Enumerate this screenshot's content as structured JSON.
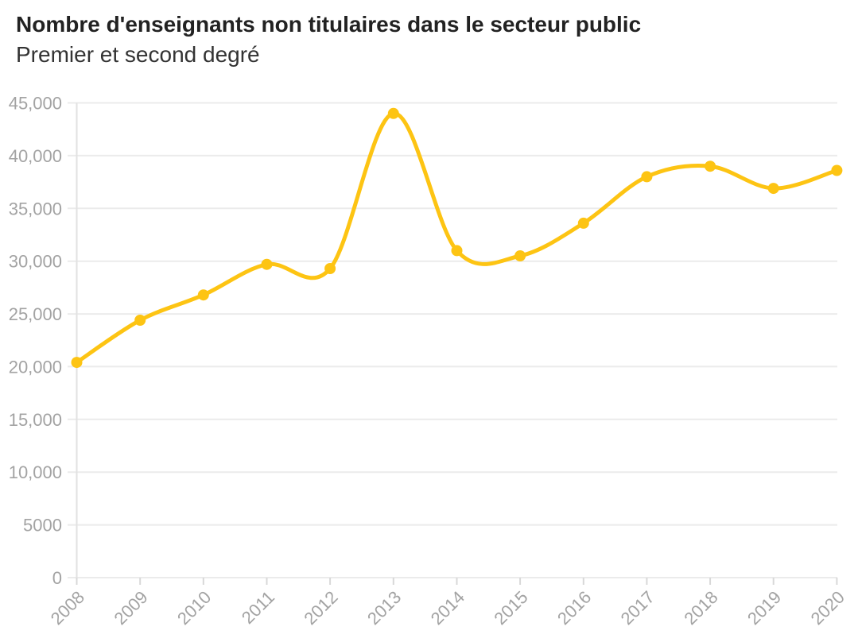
{
  "header": {
    "title": "Nombre d'enseignants non titulaires dans le secteur public",
    "subtitle": "Premier et second degré"
  },
  "chart_data": {
    "type": "line",
    "title": "Nombre d'enseignants non titulaires dans le secteur public",
    "subtitle": "Premier et second degré",
    "xlabel": "",
    "ylabel": "",
    "categories": [
      "2008",
      "2009",
      "2010",
      "2011",
      "2012",
      "2013",
      "2014",
      "2015",
      "2016",
      "2017",
      "2018",
      "2019",
      "2020"
    ],
    "values": [
      20400,
      24400,
      26800,
      29700,
      29300,
      44000,
      31000,
      30500,
      33600,
      38000,
      39000,
      36900,
      38600
    ],
    "ylim": [
      0,
      45000
    ],
    "ytick_step": 5000,
    "ytick_labels": [
      "0",
      "5000",
      "10,000",
      "15,000",
      "20,000",
      "25,000",
      "30,000",
      "35,000",
      "40,000",
      "45,000"
    ],
    "grid": "horizontal-only",
    "legend": "none",
    "line_smoothing": "curved",
    "colors": {
      "line": "#fdc413",
      "point": "#fdc413",
      "grid": "#ebebeb",
      "axis_line": "#e2e2e2",
      "tick": "#d8d8d8",
      "axis_text": "#a3a3a3",
      "title_text": "#222222",
      "background": "#ffffff"
    }
  }
}
